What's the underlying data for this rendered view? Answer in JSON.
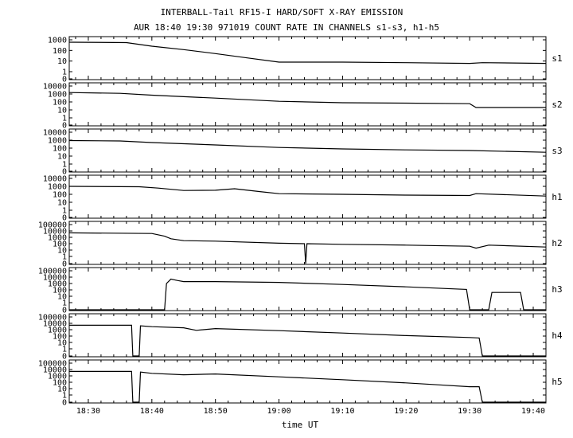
{
  "chart_data": {
    "type": "line",
    "title": "INTERBALL-Tail RF15-I HARD/SOFT X-RAY EMISSION",
    "subtitle": "AUR 18:40 19:30 971019  COUNT RATE IN CHANNELS s1-s3, h1-h5",
    "xlabel": "time UT",
    "x_ticks": [
      "18:30",
      "18:40",
      "18:50",
      "19:00",
      "19:10",
      "19:20",
      "19:30",
      "19:40"
    ],
    "xlim": [
      "18:27",
      "19:42"
    ],
    "grid": false,
    "y_scale": "log",
    "panels": [
      {
        "name": "s1",
        "y_ticks": [
          "1000",
          "100",
          "10",
          "1",
          "0"
        ],
        "series": [
          {
            "x": [
              "18:27",
              "18:36",
              "18:40",
              "18:45",
              "18:50",
              "18:55",
              "19:00",
              "19:10",
              "19:20",
              "19:30",
              "19:32",
              "19:42"
            ],
            "y": [
              600,
              550,
              250,
              120,
              50,
              20,
              8,
              8,
              7,
              6,
              7,
              6
            ]
          }
        ]
      },
      {
        "name": "s2",
        "y_ticks": [
          "10000",
          "1000",
          "100",
          "10",
          "1",
          "0"
        ],
        "series": [
          {
            "x": [
              "18:27",
              "18:35",
              "18:40",
              "18:50",
              "19:00",
              "19:10",
              "19:20",
              "19:30",
              "19:31",
              "19:42"
            ],
            "y": [
              1500,
              1200,
              700,
              300,
              120,
              80,
              70,
              60,
              20,
              20
            ]
          }
        ]
      },
      {
        "name": "s3",
        "y_ticks": [
          "10000",
          "1000",
          "100",
          "10",
          "1",
          "0"
        ],
        "series": [
          {
            "x": [
              "18:27",
              "18:35",
              "18:40",
              "18:50",
              "19:00",
              "19:10",
              "19:20",
              "19:30",
              "19:42"
            ],
            "y": [
              900,
              800,
              500,
              250,
              120,
              80,
              60,
              50,
              30
            ]
          }
        ]
      },
      {
        "name": "h1",
        "y_ticks": [
          "10000",
          "1000",
          "100",
          "10",
          "1",
          "0"
        ],
        "series": [
          {
            "x": [
              "18:27",
              "18:38",
              "18:41",
              "18:45",
              "18:50",
              "18:53",
              "18:57",
              "19:00",
              "19:10",
              "19:20",
              "19:30",
              "19:31",
              "19:42"
            ],
            "y": [
              1000,
              900,
              600,
              300,
              320,
              500,
              220,
              120,
              100,
              80,
              70,
              120,
              60
            ]
          }
        ]
      },
      {
        "name": "h2",
        "y_ticks": [
          "100000",
          "10000",
          "1000",
          "100",
          "10",
          "1",
          "0"
        ],
        "series": [
          {
            "x": [
              "18:27",
              "18:40",
              "18:42",
              "18:43",
              "18:45",
              "18:50",
              "19:00",
              "19:04",
              "19:04.2",
              "19:04.4",
              "19:10",
              "19:20",
              "19:30",
              "19:31",
              "19:33",
              "19:42"
            ],
            "y": [
              5000,
              4000,
              1500,
              600,
              300,
              250,
              120,
              100,
              0,
              100,
              80,
              60,
              40,
              20,
              60,
              30
            ]
          }
        ]
      },
      {
        "name": "h3",
        "y_ticks": [
          "100000",
          "10000",
          "1000",
          "100",
          "10",
          "1",
          "0"
        ],
        "series": [
          {
            "x": [
              "18:27",
              "18:42",
              "18:42.3",
              "18:43",
              "18:44",
              "18:45",
              "18:50",
              "19:00",
              "19:10",
              "19:20",
              "19:29.5",
              "19:30",
              "19:33",
              "19:33.5",
              "19:38",
              "19:38.5",
              "19:42"
            ],
            "y": [
              0,
              0,
              1000,
              5000,
              3000,
              2000,
              2000,
              1500,
              700,
              300,
              120,
              0,
              0,
              40,
              40,
              0,
              0
            ]
          }
        ]
      },
      {
        "name": "h4",
        "y_ticks": [
          "100000",
          "10000",
          "1000",
          "100",
          "10",
          "1",
          "0"
        ],
        "series": [
          {
            "x": [
              "18:27",
              "18:36.8",
              "18:37",
              "18:38",
              "18:38.2",
              "18:40",
              "18:45",
              "18:47",
              "18:50",
              "19:00",
              "19:10",
              "19:20",
              "19:30",
              "19:31.5",
              "19:32",
              "19:42"
            ],
            "y": [
              5000,
              5000,
              0,
              0,
              4000,
              3000,
              2000,
              800,
              1500,
              700,
              300,
              120,
              60,
              50,
              0,
              0
            ]
          }
        ]
      },
      {
        "name": "h5",
        "y_ticks": [
          "100000",
          "10000",
          "1000",
          "100",
          "10",
          "1",
          "0"
        ],
        "series": [
          {
            "x": [
              "18:27",
              "18:36.8",
              "18:37",
              "18:38",
              "18:38.2",
              "18:40",
              "18:45",
              "18:50",
              "19:00",
              "19:10",
              "19:20",
              "19:25",
              "19:30",
              "19:31.5",
              "19:32",
              "19:42"
            ],
            "y": [
              5000,
              5000,
              0,
              0,
              4000,
              2500,
              1500,
              2000,
              700,
              250,
              80,
              40,
              20,
              20,
              0,
              0
            ]
          }
        ]
      }
    ]
  }
}
